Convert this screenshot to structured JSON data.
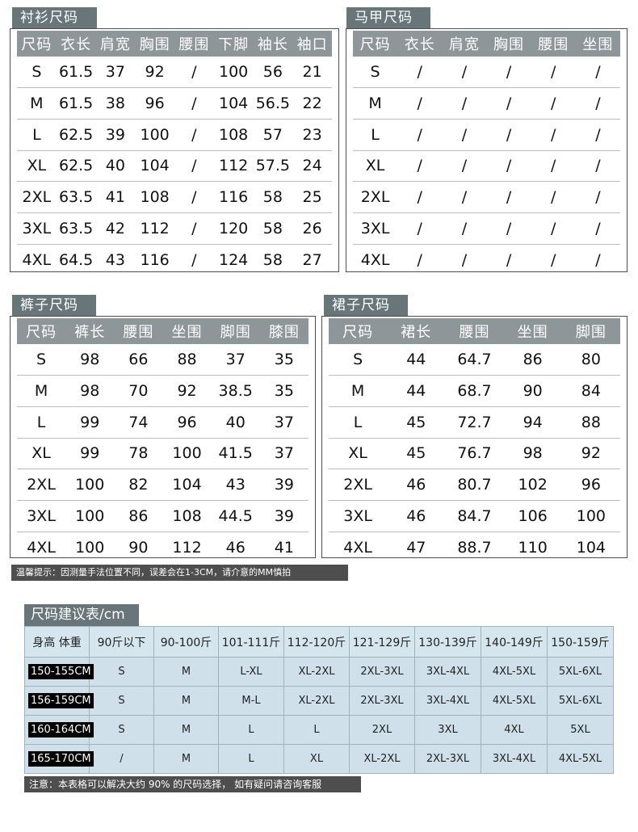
{
  "shirt": {
    "title": "衬衫尺码",
    "headers": [
      "尺码",
      "衣长",
      "肩宽",
      "胸围",
      "腰围",
      "下脚",
      "袖长",
      "袖口"
    ],
    "rows": [
      [
        "S",
        "61.5",
        "37",
        "92",
        "/",
        "100",
        "56",
        "21"
      ],
      [
        "M",
        "61.5",
        "38",
        "96",
        "/",
        "104",
        "56.5",
        "22"
      ],
      [
        "L",
        "62.5",
        "39",
        "100",
        "/",
        "108",
        "57",
        "23"
      ],
      [
        "XL",
        "62.5",
        "40",
        "104",
        "/",
        "112",
        "57.5",
        "24"
      ],
      [
        "2XL",
        "63.5",
        "41",
        "108",
        "/",
        "116",
        "58",
        "25"
      ],
      [
        "3XL",
        "63.5",
        "42",
        "112",
        "/",
        "120",
        "58",
        "26"
      ],
      [
        "4XL",
        "64.5",
        "43",
        "116",
        "/",
        "124",
        "58",
        "27"
      ]
    ]
  },
  "vest": {
    "title": "马甲尺码",
    "headers": [
      "尺码",
      "衣长",
      "肩宽",
      "胸围",
      "腰围",
      "坐围"
    ],
    "rows": [
      [
        "S",
        "/",
        "/",
        "/",
        "/",
        "/"
      ],
      [
        "M",
        "/",
        "/",
        "/",
        "/",
        "/"
      ],
      [
        "L",
        "/",
        "/",
        "/",
        "/",
        "/"
      ],
      [
        "XL",
        "/",
        "/",
        "/",
        "/",
        "/"
      ],
      [
        "2XL",
        "/",
        "/",
        "/",
        "/",
        "/"
      ],
      [
        "3XL",
        "/",
        "/",
        "/",
        "/",
        "/"
      ],
      [
        "4XL",
        "/",
        "/",
        "/",
        "/",
        "/"
      ]
    ]
  },
  "pants": {
    "title": "裤子尺码",
    "headers": [
      "尺码",
      "裤长",
      "腰围",
      "坐围",
      "脚围",
      "膝围"
    ],
    "rows": [
      [
        "S",
        "98",
        "66",
        "88",
        "37",
        "35"
      ],
      [
        "M",
        "98",
        "70",
        "92",
        "38.5",
        "35"
      ],
      [
        "L",
        "99",
        "74",
        "96",
        "40",
        "37"
      ],
      [
        "XL",
        "99",
        "78",
        "100",
        "41.5",
        "37"
      ],
      [
        "2XL",
        "100",
        "82",
        "104",
        "43",
        "39"
      ],
      [
        "3XL",
        "100",
        "86",
        "108",
        "44.5",
        "39"
      ],
      [
        "4XL",
        "100",
        "90",
        "112",
        "46",
        "41"
      ]
    ]
  },
  "skirt": {
    "title": "裙子尺码",
    "headers": [
      "尺码",
      "裙长",
      "腰围",
      "坐围",
      "脚围"
    ],
    "rows": [
      [
        "S",
        "44",
        "64.7",
        "86",
        "80"
      ],
      [
        "M",
        "44",
        "68.7",
        "90",
        "84"
      ],
      [
        "L",
        "45",
        "72.7",
        "94",
        "88"
      ],
      [
        "XL",
        "45",
        "76.7",
        "98",
        "92"
      ],
      [
        "2XL",
        "46",
        "80.7",
        "102",
        "96"
      ],
      [
        "3XL",
        "46",
        "84.7",
        "106",
        "100"
      ],
      [
        "4XL",
        "47",
        "88.7",
        "110",
        "104"
      ]
    ]
  },
  "tip": "温馨提示：因测量手法位置不同，误差会在1-3CM，请介意的MM慎拍",
  "recommend": {
    "title": "尺码建议表/cm",
    "corner": "身高 体重",
    "weights": [
      "90斤以下",
      "90-100斤",
      "101-111斤",
      "112-120斤",
      "121-129斤",
      "130-139斤",
      "140-149斤",
      "150-159斤"
    ],
    "rows": [
      {
        "height": "150-155CM",
        "sizes": [
          "S",
          "M",
          "L-XL",
          "XL-2XL",
          "2XL-3XL",
          "3XL-4XL",
          "4XL-5XL",
          "5XL-6XL"
        ]
      },
      {
        "height": "156-159CM",
        "sizes": [
          "S",
          "M",
          "M-L",
          "XL-2XL",
          "2XL-3XL",
          "3XL-4XL",
          "4XL-5XL",
          "5XL-6XL"
        ]
      },
      {
        "height": "160-164CM",
        "sizes": [
          "S",
          "M",
          "L",
          "L",
          "2XL",
          "3XL",
          "4XL",
          "5XL"
        ]
      },
      {
        "height": "165-170CM",
        "sizes": [
          "/",
          "M",
          "L",
          "XL",
          "XL-2XL",
          "2XL-3XL",
          "3XL-4XL",
          "4XL-5XL"
        ]
      }
    ]
  },
  "note": "注意：本表格可以解决大约 90% 的尺码选择， 如有疑问请咨询客服",
  "colors": {
    "tab_bg": "#68767a",
    "header_bg": "#8e9699",
    "rec_cell_bg": "#cfe0ea",
    "note_bg": "#4e4e4e"
  }
}
